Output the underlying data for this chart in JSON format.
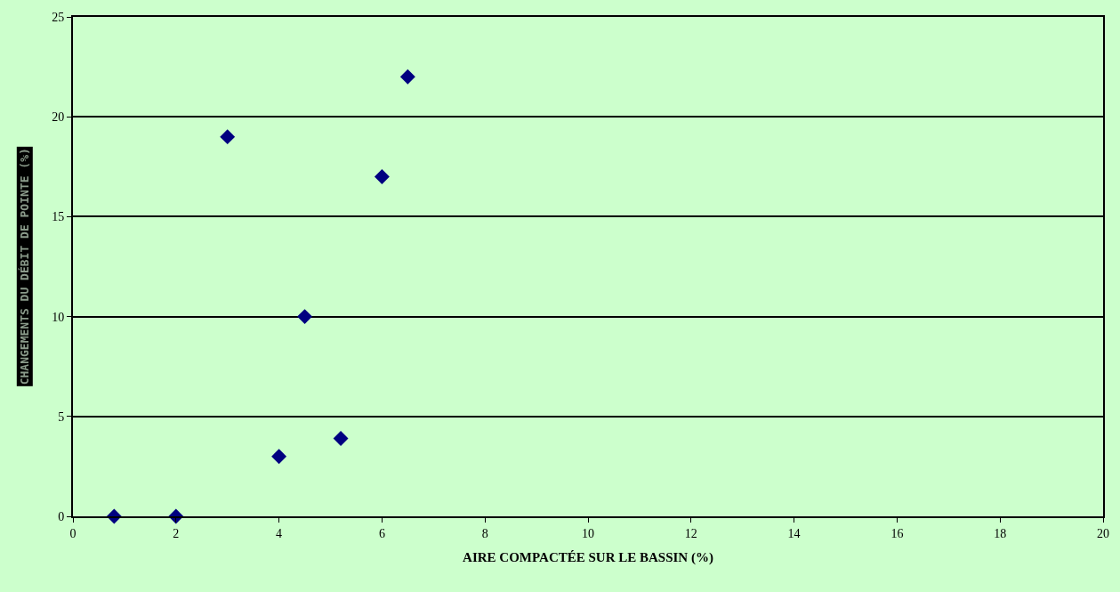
{
  "chart_data": {
    "type": "scatter",
    "xlabel": "AIRE COMPACTÉE SUR LE BASSIN (%)",
    "ylabel": "CHANGEMENTS DU DÉBIT DE POINTE (%)",
    "x": [
      0.8,
      2,
      3,
      4,
      4.5,
      5.2,
      6,
      6.5
    ],
    "series": [
      {
        "color": "#000080",
        "values": [
          0,
          0,
          19,
          3,
          10,
          3.9,
          17,
          22
        ]
      }
    ],
    "xlim": [
      0,
      20
    ],
    "xticks": [
      0,
      2,
      4,
      6,
      8,
      10,
      12,
      14,
      16,
      18,
      20
    ],
    "ylim": [
      0,
      25
    ],
    "yticks": [
      0,
      5,
      10,
      15,
      20,
      25
    ],
    "grid": "y",
    "marker": "diamond"
  }
}
